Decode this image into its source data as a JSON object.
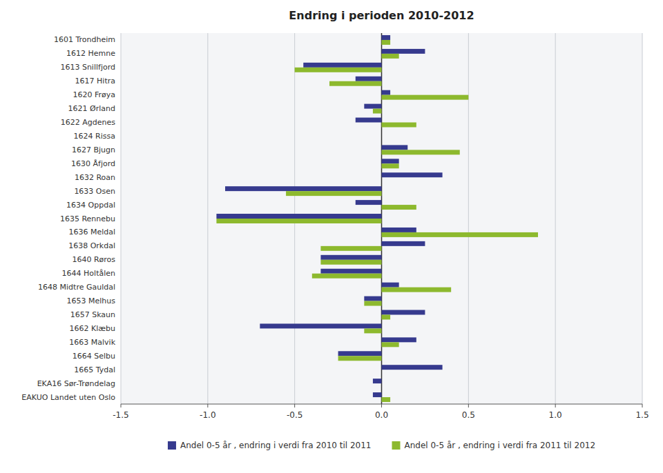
{
  "chart_data": {
    "type": "bar",
    "orientation": "horizontal",
    "title": "Endring i perioden 2010-2012",
    "categories": [
      "1601 Trondheim",
      "1612 Hemne",
      "1613 Snillfjord",
      "1617 Hitra",
      "1620 Frøya",
      "1621 Ørland",
      "1622 Agdenes",
      "1624 Rissa",
      "1627 Bjugn",
      "1630 Åfjord",
      "1632 Roan",
      "1633 Osen",
      "1634 Oppdal",
      "1635 Rennebu",
      "1636 Meldal",
      "1638 Orkdal",
      "1640 Røros",
      "1644 Holtålen",
      "1648 Midtre Gauldal",
      "1653 Melhus",
      "1657 Skaun",
      "1662 Klæbu",
      "1663 Malvik",
      "1664 Selbu",
      "1665 Tydal",
      "EKA16 Sør-Trøndelag",
      "EAKUO Landet uten Oslo"
    ],
    "series": [
      {
        "name": "Andel 0-5 år , endring i verdi fra 2010 til 2011",
        "color": "#363A8E",
        "values": [
          0.05,
          0.25,
          -0.45,
          -0.15,
          0.05,
          -0.1,
          -0.15,
          0.0,
          0.15,
          0.1,
          0.35,
          -0.9,
          -0.15,
          -0.95,
          0.2,
          0.25,
          -0.35,
          -0.35,
          0.1,
          -0.1,
          0.25,
          -0.7,
          0.2,
          -0.25,
          0.35,
          -0.05,
          -0.05
        ]
      },
      {
        "name": "Andel 0-5 år , endring i verdi fra 2011 til 2012",
        "color": "#8DB92E",
        "values": [
          0.05,
          0.1,
          -0.5,
          -0.3,
          0.5,
          -0.05,
          0.2,
          0.0,
          0.45,
          0.1,
          0.0,
          -0.55,
          0.2,
          -0.95,
          0.9,
          -0.35,
          -0.35,
          -0.4,
          0.4,
          -0.1,
          0.05,
          -0.1,
          0.1,
          -0.25,
          0.0,
          0.0,
          0.05
        ]
      }
    ],
    "xlim": [
      -1.5,
      1.5
    ],
    "xticks": [
      -1.5,
      {
        "value": -1.0,
        "label": "-1.0"
      },
      -0.5,
      {
        "value": 0.0,
        "label": "0.0"
      },
      0.5,
      {
        "value": 1.0,
        "label": "1.0"
      },
      1.5
    ],
    "grid": true,
    "legend": "bottom"
  }
}
